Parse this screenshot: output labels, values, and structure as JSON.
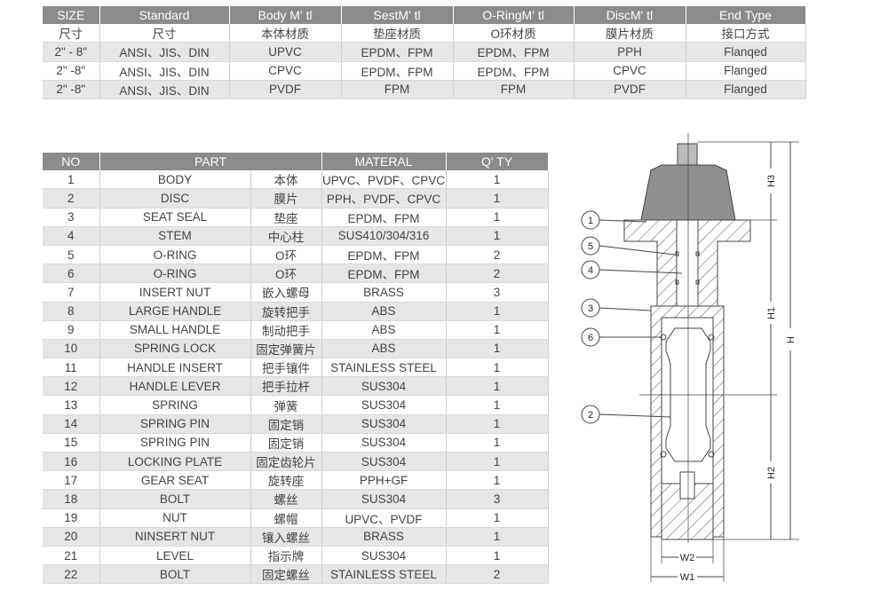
{
  "spec_table": {
    "headers": [
      "SIZE",
      "Standard",
      "Body M' tl",
      "SestM' tl",
      "O-RingM' tl",
      "DiscM' tl",
      "End Type"
    ],
    "rows": [
      [
        "尺寸",
        "尺寸",
        "本体材质",
        "垫座材质",
        "O环材质",
        "膜片材质",
        "接口方式"
      ],
      [
        "2\" - 8\"",
        "ANSI、JIS、DIN",
        "UPVC",
        "EPDM、FPM",
        "EPDM、FPM",
        "PPH",
        "Flanqed"
      ],
      [
        "2\" -8\"",
        "ANSI、JIS、DIN",
        "CPVC",
        "EPDM、FPM",
        "EPDM、FPM",
        "CPVC",
        "Flanged"
      ],
      [
        "2\" -8\"",
        "ANSI、JIS、DIN",
        "PVDF",
        "FPM",
        "FPM",
        "PVDF",
        "Flanged"
      ]
    ]
  },
  "parts_table": {
    "headers": [
      "NO",
      "PART",
      "MATERAL",
      "Q' TY"
    ],
    "rows": [
      [
        "1",
        "BODY",
        "本体",
        "UPVC、PVDF、CPVC",
        "1"
      ],
      [
        "2",
        "DISC",
        "膜片",
        "PPH、PVDF、CPVC",
        "1"
      ],
      [
        "3",
        "SEAT SEAL",
        "垫座",
        "EPDM、FPM",
        "1"
      ],
      [
        "4",
        "STEM",
        "中心柱",
        "SUS410/304/316",
        "1"
      ],
      [
        "5",
        "O-RING",
        "O环",
        "EPDM、FPM",
        "2"
      ],
      [
        "6",
        "O-RING",
        "O环",
        "EPDM、FPM",
        "2"
      ],
      [
        "7",
        "INSERT NUT",
        "嵌入螺母",
        "BRASS",
        "3"
      ],
      [
        "8",
        "LARGE HANDLE",
        "旋转把手",
        "ABS",
        "1"
      ],
      [
        "9",
        "SMALL HANDLE",
        "制动把手",
        "ABS",
        "1"
      ],
      [
        "10",
        "SPRING LOCK",
        "固定弹簧片",
        "ABS",
        "1"
      ],
      [
        "11",
        "HANDLE INSERT",
        "把手镶件",
        "STAINLESS STEEL",
        "1"
      ],
      [
        "12",
        "HANDLE LEVER",
        "把手拉杆",
        "SUS304",
        "1"
      ],
      [
        "13",
        "SPRING",
        "弹簧",
        "SUS304",
        "1"
      ],
      [
        "14",
        "SPRING PIN",
        "固定销",
        "SUS304",
        "1"
      ],
      [
        "15",
        "SPRING PIN",
        "固定销",
        "SUS304",
        "1"
      ],
      [
        "16",
        "LOCKING PLATE",
        "固定齿轮片",
        "SUS304",
        "1"
      ],
      [
        "17",
        "GEAR SEAT",
        "旋转座",
        "PPH+GF",
        "1"
      ],
      [
        "18",
        "BOLT",
        "螺丝",
        "SUS304",
        "3"
      ],
      [
        "19",
        "NUT",
        "螺帽",
        "UPVC、PVDF",
        "1"
      ],
      [
        "20",
        "NINSERT NUT",
        "镶入螺丝",
        "BRASS",
        "1"
      ],
      [
        "21",
        "LEVEL",
        "指示牌",
        "SUS304",
        "1"
      ],
      [
        "22",
        "BOLT",
        "固定螺丝",
        "STAINLESS STEEL",
        "2"
      ]
    ]
  },
  "drawing": {
    "callouts": [
      "1",
      "5",
      "4",
      "3",
      "6",
      "2"
    ],
    "dimensions": {
      "h3": "H3",
      "h1": "H1",
      "h2": "H2",
      "h": "H",
      "w2": "W2",
      "w1": "W1"
    }
  }
}
